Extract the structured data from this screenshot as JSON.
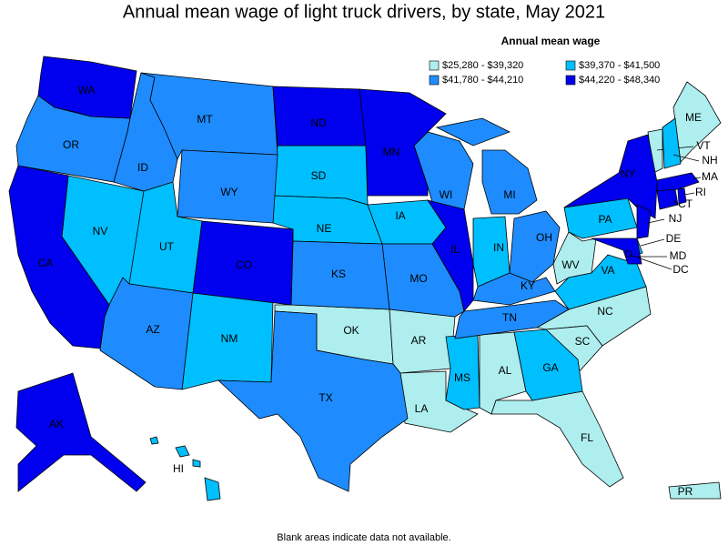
{
  "title": "Annual mean wage of light truck drivers, by state, May 2021",
  "legend": {
    "title": "Annual mean wage",
    "items": [
      {
        "label": "$25,280 - $39,320",
        "color": "#aeeeee",
        "states": [
          "ME",
          "VT",
          "WV",
          "NC",
          "SC",
          "OK",
          "AR",
          "AL",
          "LA",
          "FL",
          "PR"
        ]
      },
      {
        "label": "$39,370 - $41,500",
        "color": "#00bfff",
        "states": [
          "NH",
          "PA",
          "VA",
          "SD",
          "NE",
          "IA",
          "IN",
          "NV",
          "UT",
          "NM",
          "MS",
          "GA",
          "HI",
          "DE"
        ]
      },
      {
        "label": "$41,780 - $44,210",
        "color": "#1e8cff",
        "states": [
          "OR",
          "ID",
          "MT",
          "WY",
          "WI",
          "MI",
          "OH",
          "KY",
          "TN",
          "MO",
          "KS",
          "TX",
          "AZ"
        ]
      },
      {
        "label": "$44,220 - $48,340",
        "color": "#0000ee",
        "states": [
          "WA",
          "CA",
          "ND",
          "MN",
          "CO",
          "IL",
          "NY",
          "NJ",
          "MD",
          "MA",
          "CT",
          "RI",
          "AK",
          "DC"
        ]
      }
    ]
  },
  "note": "Blank areas indicate data not available."
}
